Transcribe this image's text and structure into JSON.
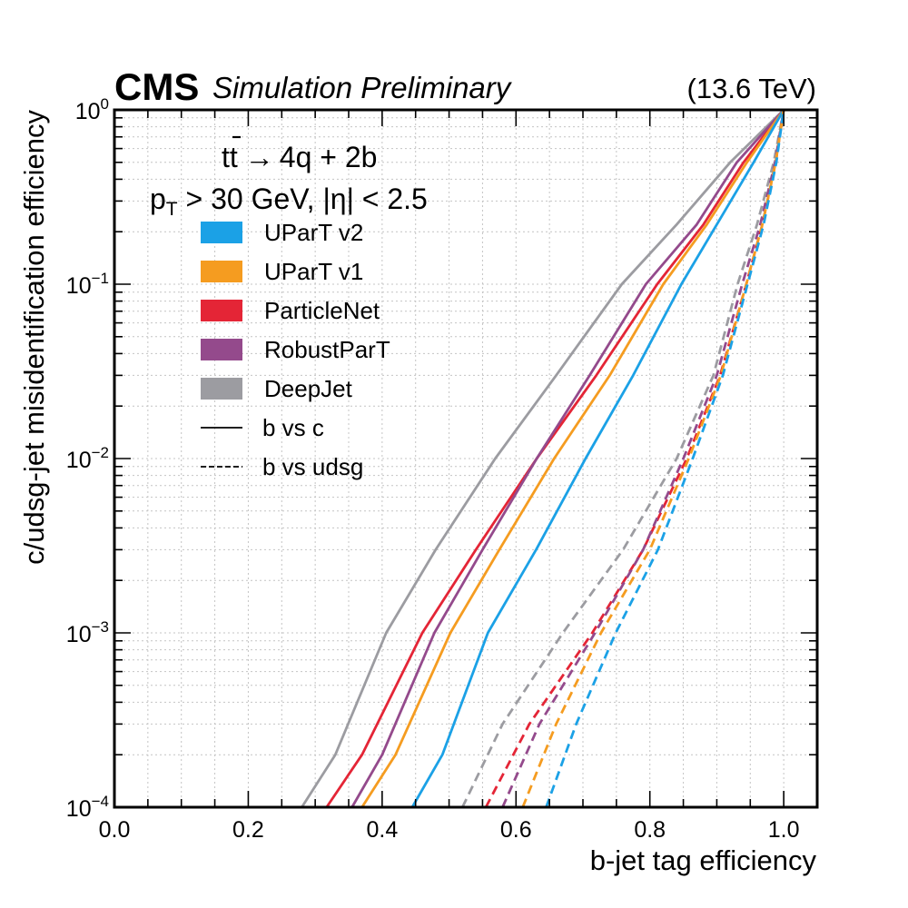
{
  "header": {
    "experiment": "CMS",
    "status": "Simulation Preliminary",
    "energy": "(13.6 TeV)"
  },
  "annotation": {
    "process": "tt̄ → 4q + 2b",
    "process_parts": {
      "t": "t",
      "tbar": "t",
      "arrow": "→",
      "rest": "4q + 2b"
    },
    "cuts_prefix": "p",
    "cuts_sub": "T",
    "cuts_rest": " > 30 GeV, |η| < 2.5"
  },
  "chart_data": {
    "type": "line",
    "title": "",
    "xlabel": "b-jet tag efficiency",
    "ylabel": "c/udsg-jet misidentification efficiency",
    "xlim": [
      0.0,
      1.05
    ],
    "ylim": [
      0.0001,
      1
    ],
    "yscale": "log",
    "grid": true,
    "legend_position": "upper-left",
    "x_ticks": [
      {
        "value": 0.0,
        "label": "0.0"
      },
      {
        "value": 0.2,
        "label": "0.2"
      },
      {
        "value": 0.4,
        "label": "0.4"
      },
      {
        "value": 0.6,
        "label": "0.6"
      },
      {
        "value": 0.8,
        "label": "0.8"
      },
      {
        "value": 1.0,
        "label": "1.0"
      }
    ],
    "y_ticks": [
      {
        "value": 1,
        "base": "10",
        "exp": "0"
      },
      {
        "value": 0.1,
        "base": "10",
        "exp": "−1"
      },
      {
        "value": 0.01,
        "base": "10",
        "exp": "−2"
      },
      {
        "value": 0.001,
        "base": "10",
        "exp": "−3"
      },
      {
        "value": 0.0001,
        "base": "10",
        "exp": "−4"
      }
    ],
    "legend": [
      {
        "label": "UParT v2",
        "kind": "patch",
        "color": "#1ba1e6"
      },
      {
        "label": "UParT v1",
        "kind": "patch",
        "color": "#f59c20"
      },
      {
        "label": "ParticleNet",
        "kind": "patch",
        "color": "#e42536"
      },
      {
        "label": "RobustParT",
        "kind": "patch",
        "color": "#944a8c"
      },
      {
        "label": "DeepJet",
        "kind": "patch",
        "color": "#9c9ca1"
      },
      {
        "label": "b vs c",
        "kind": "solid-line",
        "color": "#000000"
      },
      {
        "label": "b vs udsg",
        "kind": "dashed-line",
        "color": "#000000"
      }
    ],
    "series": [
      {
        "name": "DeepJet b vs c",
        "tagger": "DeepJet",
        "style": "solid",
        "color": "#9c9ca1",
        "x": [
          0.28,
          0.33,
          0.406,
          0.48,
          0.569,
          0.66,
          0.758,
          0.84,
          0.92,
          1.0
        ],
        "y": [
          0.0001,
          0.0002,
          0.001,
          0.003,
          0.01,
          0.03,
          0.1,
          0.22,
          0.5,
          1.0
        ]
      },
      {
        "name": "ParticleNet b vs c",
        "tagger": "ParticleNet",
        "style": "solid",
        "color": "#e42536",
        "x": [
          0.317,
          0.37,
          0.46,
          0.54,
          0.631,
          0.72,
          0.811,
          0.88,
          0.94,
          1.0
        ],
        "y": [
          0.0001,
          0.0002,
          0.001,
          0.003,
          0.01,
          0.03,
          0.1,
          0.22,
          0.5,
          1.0
        ]
      },
      {
        "name": "RobustParT b vs c",
        "tagger": "RobustParT",
        "style": "solid",
        "color": "#944a8c",
        "x": [
          0.355,
          0.4,
          0.478,
          0.55,
          0.631,
          0.71,
          0.794,
          0.87,
          0.93,
          1.0
        ],
        "y": [
          0.0001,
          0.0002,
          0.001,
          0.003,
          0.01,
          0.03,
          0.1,
          0.22,
          0.5,
          1.0
        ]
      },
      {
        "name": "UParT v1 b vs c",
        "tagger": "UParT v1",
        "style": "solid",
        "color": "#f59c20",
        "x": [
          0.37,
          0.42,
          0.502,
          0.575,
          0.657,
          0.74,
          0.82,
          0.885,
          0.945,
          1.0
        ],
        "y": [
          0.0001,
          0.0002,
          0.001,
          0.003,
          0.01,
          0.03,
          0.1,
          0.22,
          0.5,
          1.0
        ]
      },
      {
        "name": "UParT v2 b vs c",
        "tagger": "UParT v2",
        "style": "solid",
        "color": "#1ba1e6",
        "x": [
          0.445,
          0.49,
          0.558,
          0.63,
          0.704,
          0.775,
          0.847,
          0.9,
          0.955,
          1.0
        ],
        "y": [
          0.0001,
          0.0002,
          0.001,
          0.003,
          0.01,
          0.03,
          0.1,
          0.22,
          0.5,
          1.0
        ]
      },
      {
        "name": "DeepJet b vs udsg",
        "tagger": "DeepJet",
        "style": "dashed",
        "color": "#9c9ca1",
        "x": [
          0.52,
          0.58,
          0.67,
          0.76,
          0.84,
          0.895,
          0.931,
          0.96,
          0.985,
          1.0
        ],
        "y": [
          0.0001,
          0.0003,
          0.001,
          0.003,
          0.01,
          0.03,
          0.1,
          0.22,
          0.5,
          1.0
        ]
      },
      {
        "name": "ParticleNet b vs udsg",
        "tagger": "ParticleNet",
        "style": "dashed",
        "color": "#e42536",
        "x": [
          0.555,
          0.62,
          0.714,
          0.79,
          0.855,
          0.905,
          0.944,
          0.968,
          0.988,
          1.0
        ],
        "y": [
          0.0001,
          0.0003,
          0.001,
          0.003,
          0.01,
          0.03,
          0.1,
          0.22,
          0.5,
          1.0
        ]
      },
      {
        "name": "RobustParT b vs udsg",
        "tagger": "RobustParT",
        "style": "dashed",
        "color": "#944a8c",
        "x": [
          0.58,
          0.635,
          0.718,
          0.79,
          0.85,
          0.9,
          0.938,
          0.965,
          0.987,
          1.0
        ],
        "y": [
          0.0001,
          0.0003,
          0.001,
          0.003,
          0.01,
          0.03,
          0.1,
          0.22,
          0.5,
          1.0
        ]
      },
      {
        "name": "UParT v1 b vs udsg",
        "tagger": "UParT v1",
        "style": "dashed",
        "color": "#f59c20",
        "x": [
          0.61,
          0.66,
          0.727,
          0.8,
          0.858,
          0.906,
          0.944,
          0.968,
          0.988,
          1.0
        ],
        "y": [
          0.0001,
          0.0003,
          0.001,
          0.003,
          0.01,
          0.03,
          0.1,
          0.22,
          0.5,
          1.0
        ]
      },
      {
        "name": "UParT v2 b vs udsg",
        "tagger": "UParT v2",
        "style": "dashed",
        "color": "#1ba1e6",
        "x": [
          0.645,
          0.69,
          0.749,
          0.812,
          0.864,
          0.909,
          0.946,
          0.97,
          0.989,
          1.0
        ],
        "y": [
          0.0001,
          0.0003,
          0.001,
          0.003,
          0.01,
          0.03,
          0.1,
          0.22,
          0.5,
          1.0
        ]
      }
    ]
  }
}
